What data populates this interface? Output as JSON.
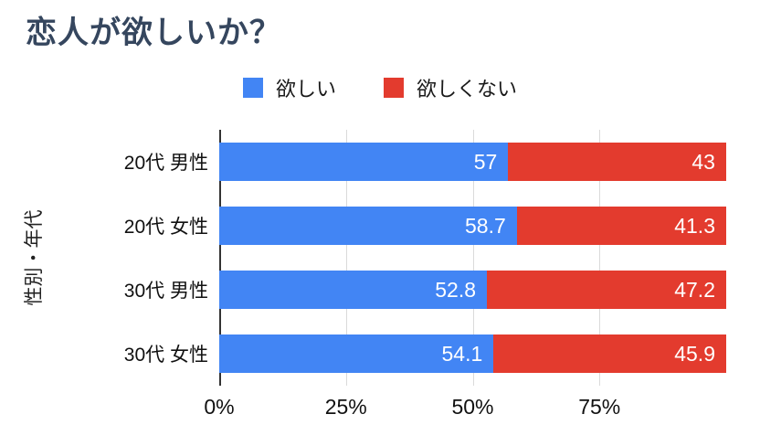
{
  "title": "恋人が欲しいか？",
  "legend": [
    {
      "label": "欲しい",
      "color": "#4285F4"
    },
    {
      "label": "欲しくない",
      "color": "#E33B2E"
    }
  ],
  "chart_data": {
    "type": "bar",
    "orientation": "horizontal",
    "stacked": true,
    "title": "恋人が欲しいか？",
    "xlabel": "",
    "ylabel": "性別・年代",
    "categories": [
      "20代 男性",
      "20代 女性",
      "30代 男性",
      "30代 女性"
    ],
    "series": [
      {
        "name": "欲しい",
        "color": "#4285F4",
        "values": [
          57,
          58.7,
          52.8,
          54.1
        ]
      },
      {
        "name": "欲しくない",
        "color": "#E33B2E",
        "values": [
          43,
          41.3,
          47.2,
          45.9
        ]
      }
    ],
    "x_ticks": [
      "0%",
      "25%",
      "50%",
      "75%"
    ],
    "x_tick_values": [
      0,
      25,
      50,
      75
    ],
    "xlim": [
      0,
      100
    ],
    "grid": true,
    "legend_position": "top"
  }
}
